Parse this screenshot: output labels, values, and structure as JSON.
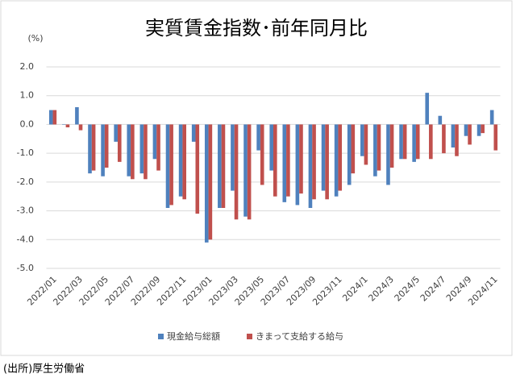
{
  "chart_data": {
    "type": "bar",
    "title": "実質賃金指数･前年同月比",
    "y_label": "(%)",
    "source": "(出所)厚生労働省",
    "categories": [
      "2022/01",
      null,
      "2022/03",
      null,
      "2022/05",
      null,
      "2022/07",
      null,
      "2022/09",
      null,
      "2022/11",
      null,
      "2023/01",
      null,
      "2023/03",
      null,
      "2023/05",
      null,
      "2023/07",
      null,
      "2023/09",
      null,
      "2023/11",
      null,
      "2024/1",
      null,
      "2024/3",
      null,
      "2024/5",
      null,
      "2024/7",
      null,
      "2024/9",
      null,
      "2024/11"
    ],
    "series": [
      {
        "name": "現金給与総額",
        "color": "#4f81bd",
        "values": [
          0.5,
          0.0,
          0.6,
          -1.7,
          -1.8,
          -0.6,
          -1.8,
          -1.7,
          -1.2,
          -2.9,
          -2.5,
          -0.6,
          -4.1,
          -2.9,
          -2.3,
          -3.2,
          -0.9,
          -1.6,
          -2.7,
          -2.8,
          -2.9,
          -2.3,
          -2.5,
          -2.1,
          -1.1,
          -1.8,
          -2.1,
          -1.2,
          -1.3,
          1.1,
          0.3,
          -0.8,
          -0.4,
          -0.4,
          0.5
        ]
      },
      {
        "name": "きまって支給する給与",
        "color": "#c0504d",
        "values": [
          0.5,
          -0.1,
          -0.2,
          -1.6,
          -1.5,
          -1.3,
          -1.9,
          -1.9,
          -1.6,
          -2.8,
          -2.6,
          -3.1,
          -4.0,
          -2.9,
          -3.3,
          -3.3,
          -2.1,
          -2.5,
          -2.5,
          -2.4,
          -2.6,
          -2.6,
          -2.3,
          -1.7,
          -1.4,
          -1.6,
          -1.5,
          -1.2,
          -1.2,
          -1.2,
          -1.0,
          -1.1,
          -0.7,
          -0.3,
          -0.9
        ]
      }
    ],
    "ylim": [
      -5,
      2
    ],
    "yticks": [
      {
        "value": -5,
        "label": "-5.0"
      },
      {
        "value": -4,
        "label": "-4.0"
      },
      {
        "value": -3,
        "label": "-3.0"
      },
      {
        "value": -2,
        "label": "-2.0"
      },
      {
        "value": -1,
        "label": "-1.0"
      },
      {
        "value": 0,
        "label": "0.0"
      },
      {
        "value": 1,
        "label": "1.0"
      },
      {
        "value": 2,
        "label": "2.0"
      }
    ],
    "grid": true,
    "legend": "bottom"
  }
}
